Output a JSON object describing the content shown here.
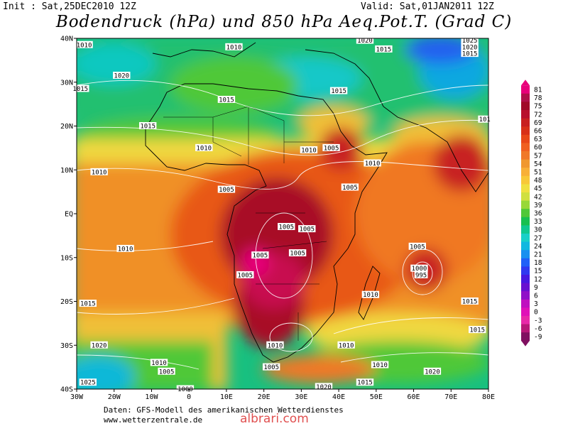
{
  "header": {
    "init": "Init : Sat,25DEC2010 12Z",
    "valid": "Valid: Sat,01JAN2011 12Z",
    "title": "Bodendruck (hPa) und 850 hPa Aeq.Pot.T. (Grad C)"
  },
  "axes": {
    "lat_labels": [
      "40N",
      "30N",
      "20N",
      "10N",
      "EQ",
      "10S",
      "20S",
      "30S",
      "40S"
    ],
    "lon_labels": [
      "30W",
      "20W",
      "10W",
      "0",
      "10E",
      "20E",
      "30E",
      "40E",
      "50E",
      "60E",
      "70E",
      "80E"
    ],
    "lat_range": [
      40,
      -40
    ],
    "lon_range": [
      -30,
      80
    ]
  },
  "isobar_labels": [
    {
      "text": "1010",
      "lon": -28,
      "lat": 38.5
    },
    {
      "text": "1010",
      "lon": 12,
      "lat": 38
    },
    {
      "text": "1020",
      "lon": 47,
      "lat": 39.5
    },
    {
      "text": "1015",
      "lon": 52,
      "lat": 37.5
    },
    {
      "text": "1025",
      "lon": 75,
      "lat": 39.5
    },
    {
      "text": "1020",
      "lon": 75,
      "lat": 38
    },
    {
      "text": "1015",
      "lon": 75,
      "lat": 36.5
    },
    {
      "text": "1020",
      "lon": -18,
      "lat": 31.5
    },
    {
      "text": "1015",
      "lon": -29,
      "lat": 28.5
    },
    {
      "text": "1015",
      "lon": 40,
      "lat": 28
    },
    {
      "text": "1015",
      "lon": 10,
      "lat": 26
    },
    {
      "text": "1015",
      "lon": -11,
      "lat": 20
    },
    {
      "text": "1010",
      "lon": 4,
      "lat": 15
    },
    {
      "text": "1010",
      "lon": 32,
      "lat": 14.5
    },
    {
      "text": "1005",
      "lon": 38,
      "lat": 15
    },
    {
      "text": "1010",
      "lon": 49,
      "lat": 11.5
    },
    {
      "text": "1010",
      "lon": -24,
      "lat": 9.5
    },
    {
      "text": "1005",
      "lon": 10,
      "lat": 5.5
    },
    {
      "text": "1005",
      "lon": 43,
      "lat": 6
    },
    {
      "text": "1005",
      "lon": 26,
      "lat": -3
    },
    {
      "text": "1005",
      "lon": 31.5,
      "lat": -3.5
    },
    {
      "text": "1010",
      "lon": -17,
      "lat": -8
    },
    {
      "text": "1005",
      "lon": 29,
      "lat": -9
    },
    {
      "text": "1005",
      "lon": 19,
      "lat": -9.5
    },
    {
      "text": "1005",
      "lon": 61,
      "lat": -7.5
    },
    {
      "text": "1000",
      "lon": 61.5,
      "lat": -12.5
    },
    {
      "text": "995",
      "lon": 62,
      "lat": -14
    },
    {
      "text": "1005",
      "lon": 15,
      "lat": -14
    },
    {
      "text": "1010",
      "lon": 48.5,
      "lat": -18.5
    },
    {
      "text": "1015",
      "lon": -27,
      "lat": -20.5
    },
    {
      "text": "1015",
      "lon": 75,
      "lat": -20
    },
    {
      "text": "1015",
      "lon": 77,
      "lat": -26.5
    },
    {
      "text": "1020",
      "lon": -24,
      "lat": -30
    },
    {
      "text": "1010",
      "lon": 23,
      "lat": -30
    },
    {
      "text": "1010",
      "lon": 42,
      "lat": -30
    },
    {
      "text": "1010",
      "lon": -8,
      "lat": -34
    },
    {
      "text": "1005",
      "lon": -6,
      "lat": -36
    },
    {
      "text": "1005",
      "lon": 22,
      "lat": -35
    },
    {
      "text": "1010",
      "lon": 51,
      "lat": -34.5
    },
    {
      "text": "1020",
      "lon": 65,
      "lat": -36
    },
    {
      "text": "1015",
      "lon": 47,
      "lat": -38.5
    },
    {
      "text": "1025",
      "lon": -27,
      "lat": -38.5
    },
    {
      "text": "1020",
      "lon": 36,
      "lat": -39.5
    },
    {
      "text": "1000",
      "lon": -1,
      "lat": -40
    },
    {
      "text": "101",
      "lon": 79,
      "lat": 21.5
    }
  ],
  "legend": {
    "values": [
      "81",
      "78",
      "75",
      "72",
      "69",
      "66",
      "63",
      "60",
      "57",
      "54",
      "51",
      "48",
      "45",
      "42",
      "39",
      "36",
      "33",
      "30",
      "27",
      "24",
      "21",
      "18",
      "15",
      "12",
      "9",
      "6",
      "3",
      "0",
      "-3",
      "-6",
      "-9"
    ],
    "colors": [
      "#e8007a",
      "#b0104a",
      "#a00828",
      "#b8102c",
      "#c82020",
      "#d83018",
      "#e84818",
      "#f06020",
      "#f07828",
      "#f09830",
      "#f8b038",
      "#f8c838",
      "#f0e040",
      "#d0e040",
      "#98d838",
      "#50c838",
      "#18c050",
      "#10c890",
      "#18d0c8",
      "#10b8e0",
      "#1890f0",
      "#2060f8",
      "#3038f0",
      "#4818e0",
      "#6810d0",
      "#9010c8",
      "#c010c0",
      "#e010b8",
      "#e828a8",
      "#b81878",
      "#801060"
    ]
  },
  "footer": {
    "source": "Daten: GFS-Modell des amerikanischen Wetterdienstes",
    "website": "www.wetterzentrale.de",
    "watermark": "albrari.com"
  }
}
